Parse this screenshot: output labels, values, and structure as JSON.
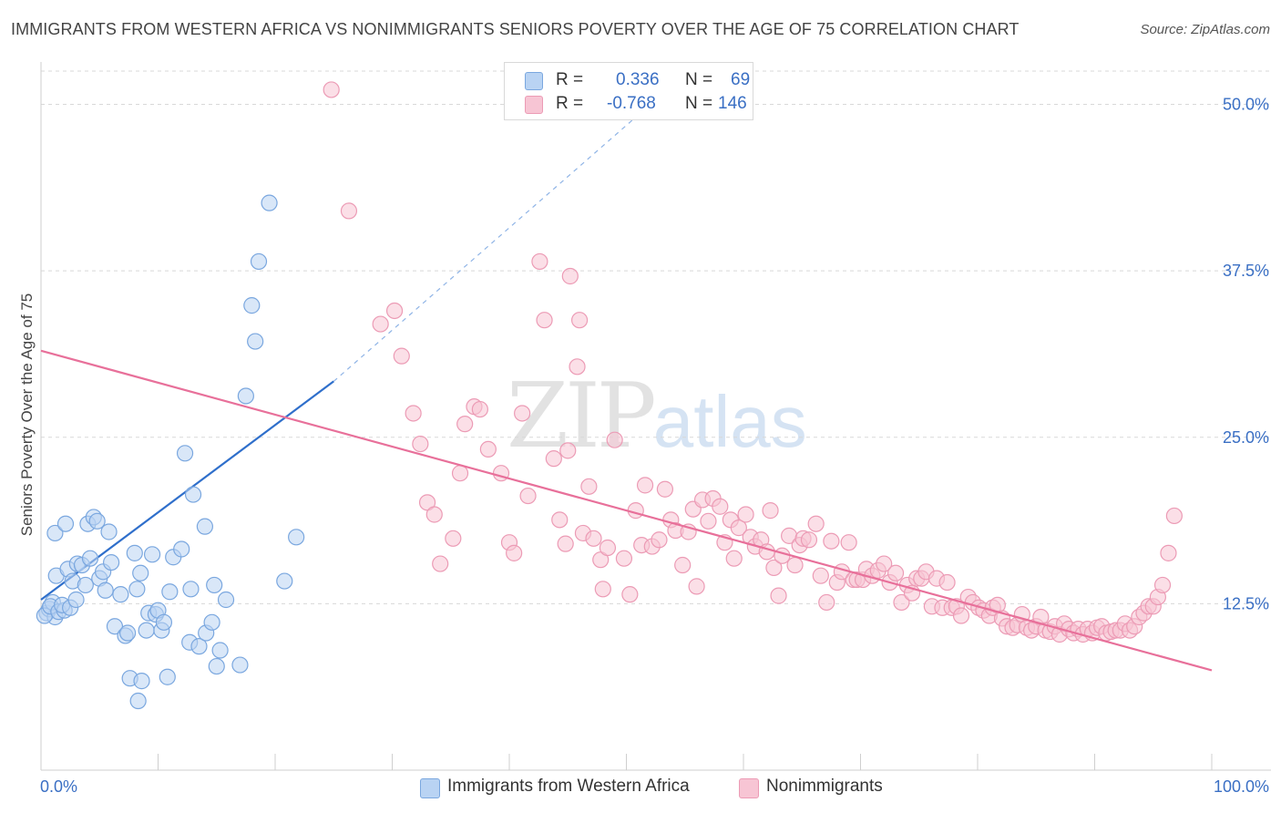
{
  "header": {
    "title": "IMMIGRANTS FROM WESTERN AFRICA VS NONIMMIGRANTS SENIORS POVERTY OVER THE AGE OF 75 CORRELATION CHART",
    "source": "Source: ZipAtlas.com"
  },
  "watermark": {
    "zip": "ZIP",
    "atlas": "atlas"
  },
  "legend": {
    "rows": [
      {
        "r_label": "R =",
        "r_value": "0.336",
        "n_label": "N =",
        "n_value": "69"
      },
      {
        "r_label": "R =",
        "r_value": "-0.768",
        "n_label": "N =",
        "n_value": "146"
      }
    ]
  },
  "bottom_legend": [
    "Immigrants from Western Africa",
    "Nonimmigrants"
  ],
  "chart_data": {
    "type": "scatter",
    "title": "IMMIGRANTS FROM WESTERN AFRICA VS NONIMMIGRANTS SENIORS POVERTY OVER THE AGE OF 75 CORRELATION CHART",
    "xlabel": "",
    "ylabel": "Seniors Poverty Over the Age of 75",
    "xlim": [
      0,
      100
    ],
    "ylim": [
      0,
      52.5
    ],
    "x_tick_labels": [
      "0.0%",
      "100.0%"
    ],
    "y_ticks": [
      12.5,
      25.0,
      37.5,
      50.0
    ],
    "y_tick_labels": [
      "12.5%",
      "25.0%",
      "37.5%",
      "50.0%"
    ],
    "grid": "horizontal dashed",
    "colors": {
      "blue_fill": "#b9d3f3",
      "blue_stroke": "#7aa7df",
      "blue_line": "#2f6fcb",
      "pink_fill": "#f7c5d4",
      "pink_stroke": "#ec9bb5",
      "pink_line": "#e8709a",
      "tick_text": "#3a6fc4",
      "grid": "#d8d8d8"
    },
    "series": [
      {
        "name": "Immigrants from Western Africa",
        "R": 0.336,
        "N": 69,
        "trend": {
          "x0": 0,
          "y0": 12.8,
          "x1": 25,
          "y1": 29.2,
          "dash_to_x": 54,
          "dash_to_y": 51.5
        },
        "points": [
          [
            0.5,
            11.8
          ],
          [
            0.7,
            12.1
          ],
          [
            1.0,
            12.6
          ],
          [
            1.2,
            11.5
          ],
          [
            0.3,
            11.6
          ],
          [
            0.8,
            12.3
          ],
          [
            1.5,
            11.9
          ],
          [
            2.0,
            12.0
          ],
          [
            1.8,
            12.4
          ],
          [
            2.5,
            12.2
          ],
          [
            1.3,
            14.6
          ],
          [
            1.2,
            17.8
          ],
          [
            2.1,
            18.5
          ],
          [
            2.3,
            15.1
          ],
          [
            2.7,
            14.2
          ],
          [
            3.1,
            15.5
          ],
          [
            3.5,
            15.4
          ],
          [
            3.0,
            12.8
          ],
          [
            3.8,
            13.9
          ],
          [
            4.0,
            18.5
          ],
          [
            4.2,
            15.9
          ],
          [
            4.5,
            19.0
          ],
          [
            4.8,
            18.7
          ],
          [
            5.0,
            14.4
          ],
          [
            5.3,
            14.9
          ],
          [
            5.5,
            13.5
          ],
          [
            5.8,
            17.9
          ],
          [
            6.0,
            15.6
          ],
          [
            6.3,
            10.8
          ],
          [
            6.8,
            13.2
          ],
          [
            7.2,
            10.1
          ],
          [
            7.4,
            10.3
          ],
          [
            7.6,
            6.9
          ],
          [
            8.0,
            16.3
          ],
          [
            8.2,
            13.6
          ],
          [
            8.3,
            5.2
          ],
          [
            8.5,
            14.8
          ],
          [
            8.6,
            6.7
          ],
          [
            9.0,
            10.5
          ],
          [
            9.2,
            11.8
          ],
          [
            9.5,
            16.2
          ],
          [
            9.8,
            11.7
          ],
          [
            10.0,
            12.0
          ],
          [
            10.3,
            10.5
          ],
          [
            10.5,
            11.1
          ],
          [
            10.8,
            7.0
          ],
          [
            11.0,
            13.4
          ],
          [
            11.3,
            16.0
          ],
          [
            12.0,
            16.6
          ],
          [
            12.3,
            23.8
          ],
          [
            12.7,
            9.6
          ],
          [
            12.8,
            13.6
          ],
          [
            13.0,
            20.7
          ],
          [
            13.5,
            9.3
          ],
          [
            14.0,
            18.3
          ],
          [
            14.1,
            10.3
          ],
          [
            14.6,
            11.1
          ],
          [
            14.8,
            13.9
          ],
          [
            15.0,
            7.8
          ],
          [
            15.3,
            9.0
          ],
          [
            15.8,
            12.8
          ],
          [
            17.0,
            7.9
          ],
          [
            17.5,
            28.1
          ],
          [
            18.0,
            34.9
          ],
          [
            18.3,
            32.2
          ],
          [
            18.6,
            38.2
          ],
          [
            19.5,
            42.6
          ],
          [
            20.8,
            14.2
          ],
          [
            21.8,
            17.5
          ]
        ]
      },
      {
        "name": "Nonimmigrants",
        "R": -0.768,
        "N": 146,
        "trend": {
          "x0": 0,
          "y0": 31.5,
          "x1": 100,
          "y1": 7.5
        },
        "points": [
          [
            24.8,
            51.1
          ],
          [
            26.3,
            42.0
          ],
          [
            29.0,
            33.5
          ],
          [
            30.2,
            34.5
          ],
          [
            30.8,
            31.1
          ],
          [
            31.8,
            26.8
          ],
          [
            32.4,
            24.5
          ],
          [
            33.0,
            20.1
          ],
          [
            33.6,
            19.2
          ],
          [
            34.1,
            15.5
          ],
          [
            35.2,
            17.4
          ],
          [
            35.8,
            22.3
          ],
          [
            36.2,
            26.0
          ],
          [
            37.0,
            27.3
          ],
          [
            37.5,
            27.1
          ],
          [
            38.2,
            24.1
          ],
          [
            39.3,
            22.3
          ],
          [
            40.0,
            17.1
          ],
          [
            40.4,
            16.3
          ],
          [
            41.1,
            26.8
          ],
          [
            41.6,
            20.6
          ],
          [
            42.6,
            38.2
          ],
          [
            43.0,
            33.8
          ],
          [
            43.8,
            23.4
          ],
          [
            44.3,
            18.8
          ],
          [
            44.8,
            17.0
          ],
          [
            45.0,
            24.0
          ],
          [
            45.2,
            37.1
          ],
          [
            45.8,
            30.3
          ],
          [
            46.0,
            33.8
          ],
          [
            46.3,
            17.8
          ],
          [
            46.8,
            21.3
          ],
          [
            47.2,
            17.4
          ],
          [
            47.8,
            15.8
          ],
          [
            48.0,
            13.6
          ],
          [
            48.4,
            16.7
          ],
          [
            49.0,
            24.8
          ],
          [
            49.8,
            15.9
          ],
          [
            50.3,
            13.2
          ],
          [
            50.8,
            19.5
          ],
          [
            51.3,
            16.9
          ],
          [
            51.6,
            21.4
          ],
          [
            52.2,
            16.8
          ],
          [
            52.8,
            17.3
          ],
          [
            53.3,
            21.1
          ],
          [
            53.8,
            18.8
          ],
          [
            54.2,
            18.0
          ],
          [
            54.8,
            15.4
          ],
          [
            55.3,
            17.9
          ],
          [
            55.7,
            19.6
          ],
          [
            56.0,
            13.8
          ],
          [
            56.5,
            20.3
          ],
          [
            57.0,
            18.7
          ],
          [
            57.4,
            20.4
          ],
          [
            58.0,
            19.8
          ],
          [
            58.4,
            17.1
          ],
          [
            58.9,
            18.8
          ],
          [
            59.2,
            15.9
          ],
          [
            59.6,
            18.2
          ],
          [
            60.2,
            19.2
          ],
          [
            60.6,
            17.5
          ],
          [
            61.0,
            16.8
          ],
          [
            61.5,
            17.3
          ],
          [
            62.0,
            16.4
          ],
          [
            62.3,
            19.5
          ],
          [
            62.6,
            15.2
          ],
          [
            63.0,
            13.1
          ],
          [
            63.3,
            16.1
          ],
          [
            63.9,
            17.6
          ],
          [
            64.4,
            15.4
          ],
          [
            64.8,
            16.9
          ],
          [
            65.1,
            17.4
          ],
          [
            65.6,
            17.3
          ],
          [
            66.2,
            18.5
          ],
          [
            66.6,
            14.6
          ],
          [
            67.1,
            12.6
          ],
          [
            67.5,
            17.2
          ],
          [
            68.0,
            14.1
          ],
          [
            68.4,
            14.9
          ],
          [
            69.0,
            17.1
          ],
          [
            69.4,
            14.3
          ],
          [
            69.7,
            14.3
          ],
          [
            70.2,
            14.3
          ],
          [
            70.5,
            15.1
          ],
          [
            71.0,
            14.6
          ],
          [
            71.5,
            15.0
          ],
          [
            72.0,
            15.5
          ],
          [
            72.5,
            14.1
          ],
          [
            73.0,
            14.8
          ],
          [
            73.5,
            12.6
          ],
          [
            74.0,
            13.9
          ],
          [
            74.4,
            13.3
          ],
          [
            74.8,
            14.4
          ],
          [
            75.2,
            14.4
          ],
          [
            75.6,
            14.9
          ],
          [
            76.1,
            12.3
          ],
          [
            76.5,
            14.4
          ],
          [
            77.0,
            12.2
          ],
          [
            77.4,
            14.1
          ],
          [
            77.8,
            12.2
          ],
          [
            78.2,
            12.3
          ],
          [
            78.6,
            11.6
          ],
          [
            79.2,
            13.0
          ],
          [
            79.6,
            12.6
          ],
          [
            80.1,
            12.2
          ],
          [
            80.5,
            12.0
          ],
          [
            81.0,
            11.6
          ],
          [
            81.3,
            12.2
          ],
          [
            81.7,
            12.4
          ],
          [
            82.1,
            11.4
          ],
          [
            82.5,
            10.8
          ],
          [
            83.0,
            10.7
          ],
          [
            83.4,
            10.9
          ],
          [
            83.8,
            11.7
          ],
          [
            84.2,
            10.7
          ],
          [
            84.6,
            10.5
          ],
          [
            85.0,
            10.8
          ],
          [
            85.4,
            11.5
          ],
          [
            85.8,
            10.5
          ],
          [
            86.2,
            10.4
          ],
          [
            86.6,
            10.8
          ],
          [
            87.0,
            10.2
          ],
          [
            87.4,
            11.0
          ],
          [
            87.8,
            10.6
          ],
          [
            88.2,
            10.3
          ],
          [
            88.6,
            10.6
          ],
          [
            89.0,
            10.2
          ],
          [
            89.4,
            10.6
          ],
          [
            89.8,
            10.3
          ],
          [
            90.2,
            10.7
          ],
          [
            90.6,
            10.8
          ],
          [
            91.0,
            10.3
          ],
          [
            91.4,
            10.4
          ],
          [
            91.8,
            10.5
          ],
          [
            92.2,
            10.5
          ],
          [
            92.6,
            11.0
          ],
          [
            93.0,
            10.5
          ],
          [
            93.4,
            10.8
          ],
          [
            93.8,
            11.5
          ],
          [
            94.2,
            11.8
          ],
          [
            94.6,
            12.3
          ],
          [
            95.0,
            12.3
          ],
          [
            95.4,
            13.0
          ],
          [
            95.8,
            13.9
          ],
          [
            96.3,
            16.3
          ],
          [
            96.8,
            19.1
          ]
        ]
      }
    ]
  }
}
